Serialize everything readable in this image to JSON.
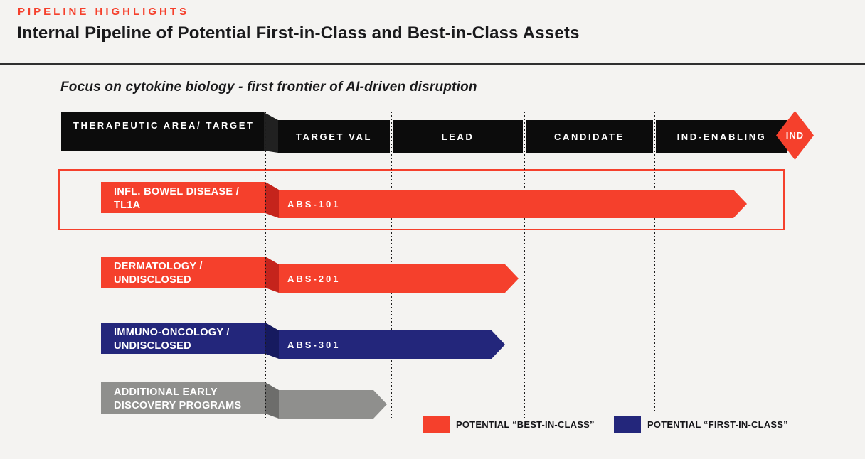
{
  "page": {
    "eyebrow": "PIPELINE HIGHLIGHTS",
    "title": "Internal Pipeline of Potential First-in-Class and Best-in-Class Assets",
    "subtitle": "Focus on cytokine biology - first frontier of AI-driven disruption"
  },
  "colors": {
    "accent_red": "#f5402c",
    "fold_red": "#c5241c",
    "navy": "#23267b",
    "fold_navy": "#161a5f",
    "gray": "#8f8f8d",
    "fold_gray": "#6d6d6b",
    "header_black": "#0c0c0c",
    "background": "#f4f3f1"
  },
  "chart": {
    "row_header": {
      "line1": "THERAPEUTIC AREA/",
      "line2": "TARGET"
    },
    "stages": [
      "TARGET VAL",
      "LEAD",
      "CANDIDATE",
      "IND-ENABLING"
    ],
    "ind_label": "IND",
    "rows": [
      {
        "area_line1": "INFL. BOWEL DISEASE /",
        "area_line2": "TL1A",
        "asset": "ABS-101",
        "classification": "POTENTIAL “BEST-IN-CLASS”",
        "highlighted": true
      },
      {
        "area_line1": "DERMATOLOGY /",
        "area_line2": "UNDISCLOSED",
        "asset": "ABS-201",
        "classification": "POTENTIAL “BEST-IN-CLASS”",
        "highlighted": false
      },
      {
        "area_line1": "IMMUNO-ONCOLOGY /",
        "area_line2": "UNDISCLOSED",
        "asset": "ABS-301",
        "classification": "POTENTIAL “FIRST-IN-CLASS”",
        "highlighted": false
      },
      {
        "area_line1": "ADDITIONAL EARLY",
        "area_line2": "DISCOVERY PROGRAMS",
        "asset": "",
        "classification": "discovery",
        "highlighted": false
      }
    ],
    "legend": [
      {
        "label": "POTENTIAL “BEST-IN-CLASS”",
        "color": "#f5402c"
      },
      {
        "label": "POTENTIAL “FIRST-IN-CLASS”",
        "color": "#23267b"
      }
    ]
  },
  "chart_data": {
    "type": "bar",
    "orientation": "horizontal",
    "title": "Internal Pipeline of Potential First-in-Class and Best-in-Class Assets",
    "subtitle": "Focus on cytokine biology - first frontier of AI-driven disruption",
    "x_axis_stages": [
      "TARGET VAL",
      "LEAD",
      "CANDIDATE",
      "IND-ENABLING",
      "IND"
    ],
    "categories": [
      "INFL. BOWEL DISEASE / TL1A",
      "DERMATOLOGY / UNDISCLOSED",
      "IMMUNO-ONCOLOGY / UNDISCLOSED",
      "ADDITIONAL EARLY DISCOVERY PROGRAMS"
    ],
    "series": [
      {
        "name": "ABS-101",
        "stage_reached": "IND-ENABLING",
        "progress_stage_units": 3.76,
        "classification": "POTENTIAL “BEST-IN-CLASS”",
        "highlighted": true
      },
      {
        "name": "ABS-201",
        "stage_reached": "LEAD",
        "progress_stage_units": 1.96,
        "classification": "POTENTIAL “BEST-IN-CLASS”",
        "highlighted": false
      },
      {
        "name": "ABS-301",
        "stage_reached": "LEAD",
        "progress_stage_units": 1.86,
        "classification": "POTENTIAL “FIRST-IN-CLASS”",
        "highlighted": false
      },
      {
        "name": "",
        "stage_reached": "TARGET VAL",
        "progress_stage_units": 0.97,
        "classification": "early discovery",
        "highlighted": false
      }
    ],
    "legend_position": "bottom-right",
    "grid": "vertical-dotted-stage-separators"
  }
}
